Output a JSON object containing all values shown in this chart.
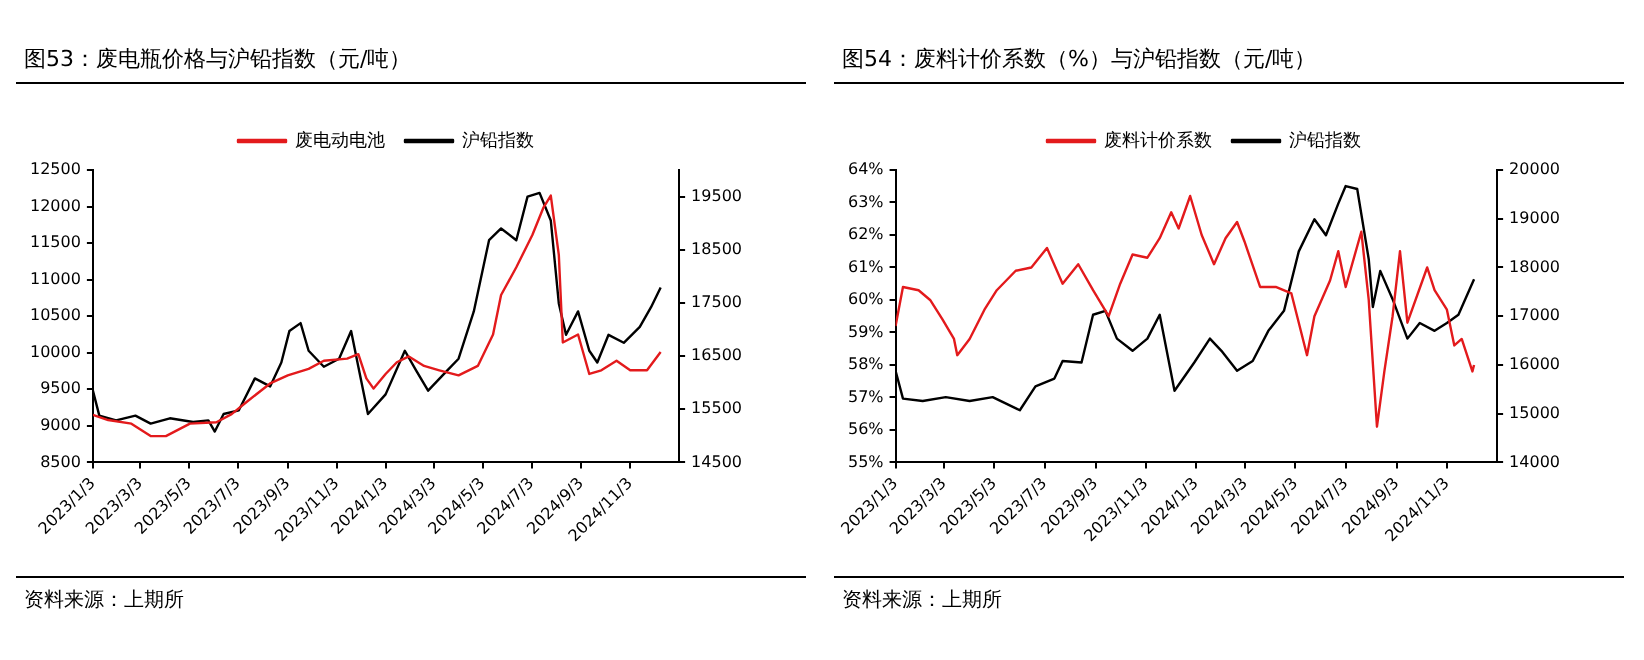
{
  "chart_data": [
    {
      "type": "line",
      "title": "图53：废电瓶价格与沪铅指数（元/吨）",
      "annotations": [
        "资料来源：上期所"
      ],
      "legend": "top",
      "xlim": [
        "2023-01-03",
        "2025-01-03"
      ],
      "xticks": [
        {
          "value": "2023-01-03",
          "label": "2023/1/3"
        },
        {
          "value": "2023-03-03",
          "label": "2023/3/3"
        },
        {
          "value": "2023-05-03",
          "label": "2023/5/3"
        },
        {
          "value": "2023-07-03",
          "label": "2023/7/3"
        },
        {
          "value": "2023-09-03",
          "label": "2023/9/3"
        },
        {
          "value": "2023-11-03",
          "label": "2023/11/3"
        },
        {
          "value": "2024-01-03",
          "label": "2024/1/3"
        },
        {
          "value": "2024-03-03",
          "label": "2024/3/3"
        },
        {
          "value": "2024-05-03",
          "label": "2024/5/3"
        },
        {
          "value": "2024-07-03",
          "label": "2024/7/3"
        },
        {
          "value": "2024-09-03",
          "label": "2024/9/3"
        },
        {
          "value": "2024-11-03",
          "label": "2024/11/3"
        }
      ],
      "ylim": [
        8500,
        12500
      ],
      "yticks": [
        8500,
        9000,
        9500,
        10000,
        10500,
        11000,
        11500,
        12000,
        12500
      ],
      "y2lim": [
        14500,
        20000
      ],
      "y2ticks": [
        14500,
        15500,
        16500,
        17500,
        18500,
        19500
      ],
      "series": [
        {
          "name": "废电动电池",
          "color": "#e31a1c",
          "x": [
            "2023-01-03",
            "2023-01-22",
            "2023-02-20",
            "2023-03-16",
            "2023-04-04",
            "2023-05-04",
            "2023-06-06",
            "2023-06-25",
            "2023-07-14",
            "2023-08-12",
            "2023-09-03",
            "2023-09-29",
            "2023-10-18",
            "2023-11-16",
            "2023-11-30",
            "2023-12-10",
            "2023-12-19",
            "2024-01-03",
            "2024-01-17",
            "2024-02-01",
            "2024-02-20",
            "2024-03-10",
            "2024-04-03",
            "2024-04-27",
            "2024-05-16",
            "2024-05-26",
            "2024-06-14",
            "2024-07-04",
            "2024-07-18",
            "2024-07-27",
            "2024-08-06",
            "2024-08-11",
            "2024-08-30",
            "2024-09-13",
            "2024-09-28",
            "2024-10-17",
            "2024-11-03",
            "2024-11-24",
            "2024-12-11"
          ],
          "values": [
            9150,
            9080,
            9030,
            8860,
            8860,
            9030,
            9050,
            9160,
            9330,
            9580,
            9690,
            9780,
            9890,
            9920,
            9980,
            9650,
            9510,
            9710,
            9870,
            9950,
            9820,
            9760,
            9690,
            9820,
            10250,
            10790,
            11170,
            11610,
            11990,
            12150,
            11340,
            10140,
            10250,
            9710,
            9760,
            9890,
            9760,
            9760,
            10010
          ]
        },
        {
          "name": "沪铅指数",
          "color": "#000000",
          "axis": "y2",
          "x": [
            "2023-01-03",
            "2023-01-11",
            "2023-02-01",
            "2023-02-25",
            "2023-03-16",
            "2023-04-09",
            "2023-05-08",
            "2023-05-27",
            "2023-06-04",
            "2023-06-15",
            "2023-07-04",
            "2023-07-24",
            "2023-08-12",
            "2023-08-26",
            "2023-09-05",
            "2023-09-19",
            "2023-09-29",
            "2023-10-18",
            "2023-11-06",
            "2023-11-21",
            "2023-11-30",
            "2023-12-12",
            "2024-01-03",
            "2024-01-27",
            "2024-02-10",
            "2024-02-25",
            "2024-03-20",
            "2024-04-03",
            "2024-04-22",
            "2024-05-11",
            "2024-05-26",
            "2024-06-14",
            "2024-06-28",
            "2024-07-13",
            "2024-07-27",
            "2024-08-06",
            "2024-08-15",
            "2024-08-30",
            "2024-09-13",
            "2024-09-23",
            "2024-10-07",
            "2024-10-26",
            "2024-11-15",
            "2024-11-29",
            "2024-12-11"
          ],
          "values": [
            15850,
            15380,
            15290,
            15380,
            15230,
            15330,
            15260,
            15290,
            15080,
            15410,
            15480,
            16080,
            15930,
            16380,
            16970,
            17120,
            16600,
            16300,
            16450,
            16970,
            16300,
            15410,
            15780,
            16600,
            16230,
            15850,
            16230,
            16450,
            17340,
            18680,
            18900,
            18680,
            19500,
            19570,
            19050,
            17490,
            16900,
            17340,
            16600,
            16380,
            16900,
            16750,
            17050,
            17420,
            17790
          ]
        }
      ]
    },
    {
      "type": "line",
      "title": "图54：废料计价系数（%）与沪铅指数（元/吨）",
      "annotations": [
        "资料来源：上期所"
      ],
      "legend": "top",
      "xlim": [
        "2023-01-03",
        "2025-01-03"
      ],
      "xticks": [
        {
          "value": "2023-01-03",
          "label": "2023/1/3"
        },
        {
          "value": "2023-03-03",
          "label": "2023/3/3"
        },
        {
          "value": "2023-05-03",
          "label": "2023/5/3"
        },
        {
          "value": "2023-07-03",
          "label": "2023/7/3"
        },
        {
          "value": "2023-09-03",
          "label": "2023/9/3"
        },
        {
          "value": "2023-11-03",
          "label": "2023/11/3"
        },
        {
          "value": "2024-01-03",
          "label": "2024/1/3"
        },
        {
          "value": "2024-03-03",
          "label": "2024/3/3"
        },
        {
          "value": "2024-05-03",
          "label": "2024/5/3"
        },
        {
          "value": "2024-07-03",
          "label": "2024/7/3"
        },
        {
          "value": "2024-09-03",
          "label": "2024/9/3"
        },
        {
          "value": "2024-11-03",
          "label": "2024/11/3"
        }
      ],
      "ylim": [
        55,
        64
      ],
      "yticks": [
        {
          "value": 55,
          "label": "55%"
        },
        {
          "value": 56,
          "label": "56%"
        },
        {
          "value": 57,
          "label": "57%"
        },
        {
          "value": 58,
          "label": "58%"
        },
        {
          "value": 59,
          "label": "59%"
        },
        {
          "value": 60,
          "label": "60%"
        },
        {
          "value": 61,
          "label": "61%"
        },
        {
          "value": 62,
          "label": "62%"
        },
        {
          "value": 63,
          "label": "63%"
        },
        {
          "value": 64,
          "label": "64%"
        }
      ],
      "y2lim": [
        14000,
        20000
      ],
      "y2ticks": [
        14000,
        15000,
        16000,
        17000,
        18000,
        19000,
        20000
      ],
      "series": [
        {
          "name": "废料计价系数",
          "color": "#e31a1c",
          "x": [
            "2023-01-03",
            "2023-01-12",
            "2023-01-31",
            "2023-02-14",
            "2023-03-01",
            "2023-03-15",
            "2023-03-19",
            "2023-04-03",
            "2023-04-21",
            "2023-05-06",
            "2023-05-29",
            "2023-06-17",
            "2023-07-06",
            "2023-07-25",
            "2023-08-13",
            "2023-08-31",
            "2023-09-19",
            "2023-10-03",
            "2023-10-18",
            "2023-11-05",
            "2023-11-20",
            "2023-12-04",
            "2023-12-13",
            "2023-12-27",
            "2024-01-10",
            "2024-01-25",
            "2024-02-08",
            "2024-02-22",
            "2024-03-02",
            "2024-03-21",
            "2024-04-09",
            "2024-04-28",
            "2024-05-17",
            "2024-05-26",
            "2024-06-14",
            "2024-06-24",
            "2024-07-03",
            "2024-07-22",
            "2024-07-31",
            "2024-08-10",
            "2024-08-19",
            "2024-08-29",
            "2024-09-07",
            "2024-09-16",
            "2024-10-10",
            "2024-10-19",
            "2024-11-03",
            "2024-11-12",
            "2024-11-21",
            "2024-12-04",
            "2024-12-06"
          ],
          "values": [
            59.2,
            60.4,
            60.3,
            60.0,
            59.4,
            58.8,
            58.3,
            58.8,
            59.7,
            60.3,
            60.9,
            61.0,
            61.6,
            60.5,
            61.1,
            60.3,
            59.5,
            60.5,
            61.4,
            61.3,
            61.9,
            62.7,
            62.2,
            63.2,
            62.0,
            61.1,
            61.9,
            62.4,
            61.8,
            60.4,
            60.4,
            60.2,
            58.3,
            59.5,
            60.6,
            61.5,
            60.4,
            62.1,
            60.0,
            56.1,
            57.8,
            59.5,
            61.5,
            59.3,
            61.0,
            60.3,
            59.7,
            58.6,
            58.8,
            57.8,
            58.0
          ]
        },
        {
          "name": "沪铅指数",
          "color": "#000000",
          "axis": "y2",
          "x": [
            "2023-01-03",
            "2023-01-12",
            "2023-02-05",
            "2023-03-05",
            "2023-04-03",
            "2023-05-01",
            "2023-06-03",
            "2023-06-22",
            "2023-07-15",
            "2023-07-25",
            "2023-08-17",
            "2023-08-31",
            "2023-09-15",
            "2023-09-29",
            "2023-10-18",
            "2023-11-05",
            "2023-11-20",
            "2023-12-08",
            "2024-01-01",
            "2024-01-20",
            "2024-02-03",
            "2024-02-22",
            "2024-03-12",
            "2024-03-31",
            "2024-04-19",
            "2024-05-07",
            "2024-05-26",
            "2024-06-09",
            "2024-06-24",
            "2024-07-03",
            "2024-07-17",
            "2024-07-31",
            "2024-08-05",
            "2024-08-14",
            "2024-08-29",
            "2024-09-16",
            "2024-10-01",
            "2024-10-19",
            "2024-11-03",
            "2024-11-17",
            "2024-12-06"
          ],
          "values": [
            15880,
            15310,
            15260,
            15340,
            15260,
            15340,
            15070,
            15560,
            15720,
            16080,
            16050,
            17030,
            17110,
            16540,
            16290,
            16540,
            17030,
            15470,
            16050,
            16540,
            16290,
            15880,
            16080,
            16700,
            17110,
            18330,
            18990,
            18660,
            19310,
            19670,
            19610,
            18170,
            17190,
            17930,
            17350,
            16540,
            16860,
            16700,
            16860,
            17030,
            17760
          ]
        }
      ]
    }
  ]
}
